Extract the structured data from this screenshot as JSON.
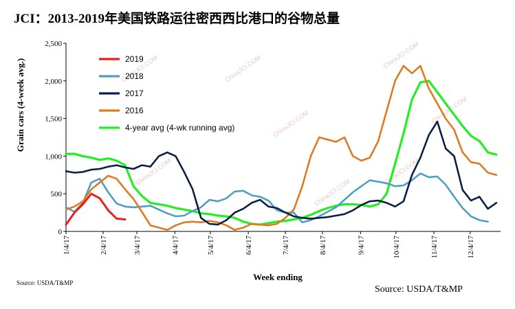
{
  "title": "JCI：2013-2019年美国铁路运往密西西比港口的谷物总量",
  "source_small": "Source:  USDA/T&MP",
  "source_large": "Source: USDA/T&MP",
  "watermark": "ChinaJCI.COM",
  "chart_data": {
    "type": "line",
    "title": "JCI：2013-2019年美国铁路运往密西西比港口的谷物总量",
    "xlabel": "Week ending",
    "ylabel": "Grain cars (4-week avg.)",
    "ylim": [
      0,
      2500
    ],
    "yticks": [
      0,
      500,
      1000,
      1500,
      2000,
      2500
    ],
    "ytick_labels": [
      "0",
      "500",
      "1,000",
      "1,500",
      "2,000",
      "2,500"
    ],
    "xticks": [
      {
        "week": 0,
        "label": "1/4/17"
      },
      {
        "week": 4.4,
        "label": "2/4/17"
      },
      {
        "week": 8.4,
        "label": "3/4/17"
      },
      {
        "week": 12.9,
        "label": "4/4/17"
      },
      {
        "week": 17.1,
        "label": "5/4/17"
      },
      {
        "week": 21.6,
        "label": "6/4/17"
      },
      {
        "week": 26.0,
        "label": "7/4/17"
      },
      {
        "week": 30.4,
        "label": "8/4/17"
      },
      {
        "week": 34.9,
        "label": "9/4/17"
      },
      {
        "week": 39.1,
        "label": "10/4/17"
      },
      {
        "week": 43.6,
        "label": "11/4/17"
      },
      {
        "week": 47.9,
        "label": "12/4/17"
      }
    ],
    "xlim": [
      0,
      51.5
    ],
    "grid": false,
    "legend_position": "top-left",
    "series": [
      {
        "name": "2019",
        "color": "#e8211a",
        "x": [
          0,
          1,
          2,
          3,
          4,
          5,
          6,
          7
        ],
        "values": [
          90,
          250,
          360,
          500,
          440,
          280,
          170,
          160
        ]
      },
      {
        "name": "2018",
        "color": "#4e9fc1",
        "x": [
          0,
          1,
          2,
          3,
          4,
          5,
          6,
          7,
          8,
          9,
          10,
          11,
          12,
          13,
          14,
          15,
          16,
          17,
          18,
          19,
          20,
          21,
          22,
          23,
          24,
          25,
          26,
          27,
          28,
          29,
          30,
          31,
          32,
          33,
          34,
          35,
          36,
          37,
          38,
          39,
          40,
          41,
          42,
          43,
          44,
          45,
          46,
          47,
          48,
          49,
          50
        ],
        "values": [
          320,
          260,
          380,
          650,
          700,
          520,
          370,
          330,
          320,
          330,
          340,
          290,
          240,
          200,
          210,
          270,
          320,
          420,
          400,
          440,
          530,
          540,
          480,
          460,
          410,
          280,
          250,
          250,
          120,
          150,
          200,
          260,
          320,
          420,
          520,
          600,
          680,
          660,
          640,
          600,
          610,
          680,
          770,
          720,
          730,
          620,
          460,
          310,
          200,
          150,
          130
        ]
      },
      {
        "name": "2017",
        "color": "#0c1f45",
        "x": [
          0,
          1,
          2,
          3,
          4,
          5,
          6,
          7,
          8,
          9,
          10,
          11,
          12,
          13,
          14,
          15,
          16,
          17,
          18,
          19,
          20,
          21,
          22,
          23,
          24,
          25,
          26,
          27,
          28,
          29,
          30,
          31,
          32,
          33,
          34,
          35,
          36,
          37,
          38,
          39,
          40,
          41,
          42,
          43,
          44,
          45,
          46,
          47,
          48,
          49,
          50,
          51
        ],
        "values": [
          800,
          780,
          790,
          820,
          830,
          860,
          880,
          850,
          830,
          880,
          860,
          1000,
          1050,
          1000,
          790,
          560,
          180,
          100,
          90,
          150,
          250,
          300,
          380,
          420,
          330,
          310,
          250,
          200,
          180,
          170,
          180,
          190,
          210,
          230,
          280,
          350,
          400,
          410,
          380,
          330,
          400,
          750,
          980,
          1280,
          1460,
          1100,
          1000,
          550,
          410,
          460,
          300,
          380
        ]
      },
      {
        "name": "2016",
        "color": "#e07a22",
        "x": [
          0,
          1,
          2,
          3,
          4,
          5,
          6,
          7,
          8,
          9,
          10,
          11,
          12,
          13,
          14,
          15,
          16,
          17,
          18,
          19,
          20,
          21,
          22,
          23,
          24,
          25,
          26,
          27,
          28,
          29,
          30,
          31,
          32,
          33,
          34,
          35,
          36,
          37,
          38,
          39,
          40,
          41,
          42,
          43,
          44,
          45,
          46,
          47,
          48,
          49,
          50,
          51
        ],
        "values": [
          290,
          330,
          400,
          560,
          650,
          740,
          700,
          560,
          430,
          260,
          80,
          50,
          20,
          80,
          120,
          130,
          120,
          140,
          120,
          80,
          20,
          50,
          100,
          90,
          80,
          100,
          180,
          290,
          600,
          1000,
          1250,
          1220,
          1190,
          1250,
          1000,
          940,
          980,
          1200,
          1600,
          2000,
          2200,
          2100,
          2200,
          1900,
          1700,
          1500,
          1350,
          1050,
          920,
          900,
          780,
          750
        ]
      },
      {
        "name": "4-year avg (4-wk running avg)",
        "color": "#22ee22",
        "x": [
          0,
          1,
          2,
          3,
          4,
          5,
          6,
          7,
          8,
          9,
          10,
          11,
          12,
          13,
          14,
          15,
          16,
          17,
          18,
          19,
          20,
          21,
          22,
          23,
          24,
          25,
          26,
          27,
          28,
          29,
          30,
          31,
          32,
          33,
          34,
          35,
          36,
          37,
          38,
          39,
          40,
          41,
          42,
          43,
          44,
          45,
          46,
          47,
          48,
          49,
          50,
          51
        ],
        "values": [
          1030,
          1030,
          1000,
          980,
          950,
          970,
          940,
          880,
          600,
          470,
          380,
          360,
          340,
          310,
          290,
          270,
          240,
          230,
          210,
          200,
          180,
          130,
          100,
          90,
          110,
          130,
          140,
          160,
          180,
          220,
          270,
          310,
          340,
          360,
          360,
          350,
          330,
          360,
          500,
          900,
          1300,
          1750,
          1980,
          2000,
          1850,
          1700,
          1550,
          1400,
          1270,
          1200,
          1050,
          1020
        ]
      }
    ]
  }
}
